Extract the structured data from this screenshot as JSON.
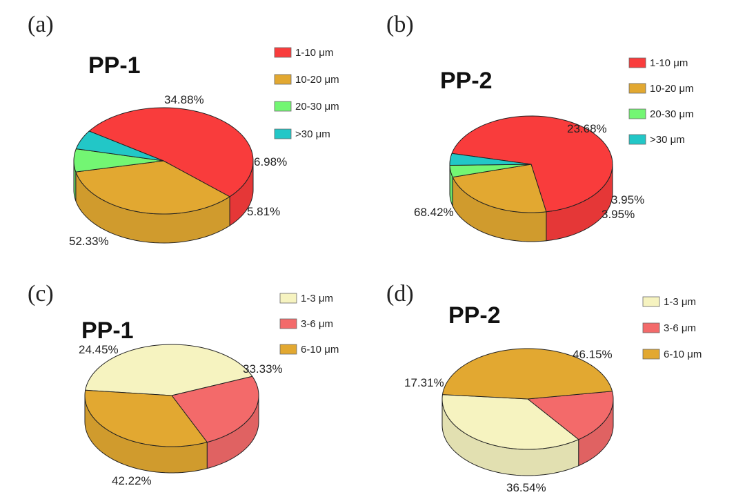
{
  "chart_data": [
    {
      "panel": "(a)",
      "type": "pie",
      "title": "PP-1",
      "categories": [
        "1-10 μm",
        "10-20 μm",
        "20-30 μm",
        ">30 μm"
      ],
      "values": [
        52.33,
        34.88,
        6.98,
        5.81
      ],
      "value_labels": [
        "52.33%",
        "34.88%",
        "6.98%",
        "5.81%"
      ],
      "colors": [
        "#f93c3c",
        "#e2a831",
        "#73f673",
        "#22c7c7"
      ],
      "legend_position": "top-right"
    },
    {
      "panel": "(b)",
      "type": "pie",
      "title": "PP-2",
      "categories": [
        "1-10 μm",
        "10-20 μm",
        "20-30 μm",
        ">30 μm"
      ],
      "values": [
        68.42,
        23.68,
        3.95,
        3.95
      ],
      "value_labels": [
        "68.42%",
        "23.68%",
        "3.95%",
        "3.95%"
      ],
      "colors": [
        "#f93c3c",
        "#e2a831",
        "#73f673",
        "#22c7c7"
      ],
      "legend_position": "top-right"
    },
    {
      "panel": "(c)",
      "type": "pie",
      "title": "PP-1",
      "categories": [
        "1-3 μm",
        "3-6 μm",
        "6-10 μm"
      ],
      "values": [
        42.22,
        24.45,
        33.33
      ],
      "value_labels": [
        "42.22%",
        "24.45%",
        "33.33%"
      ],
      "colors": [
        "#f6f3c0",
        "#f36a6a",
        "#e2a831"
      ],
      "legend_position": "top-right"
    },
    {
      "panel": "(d)",
      "type": "pie",
      "title": "PP-2",
      "categories": [
        "1-3 μm",
        "3-6 μm",
        "6-10 μm"
      ],
      "values": [
        36.54,
        17.31,
        46.15
      ],
      "value_labels": [
        "36.54%",
        "17.31%",
        "46.15%"
      ],
      "colors": [
        "#f6f3c0",
        "#f36a6a",
        "#e2a831"
      ],
      "legend_position": "top-right"
    }
  ]
}
